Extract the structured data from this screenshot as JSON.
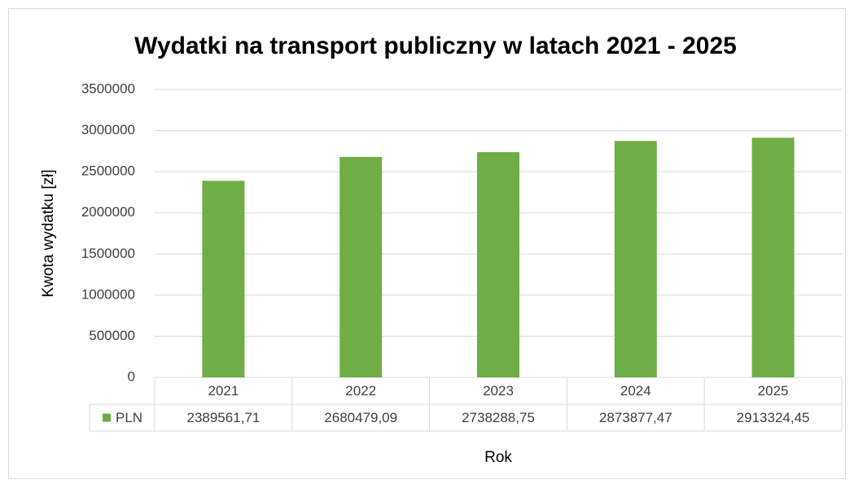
{
  "chart_data": {
    "type": "bar",
    "title": "Wydatki na transport publiczny w latach 2021 - 2025",
    "x_label": "Rok",
    "y_label": "Kwota wydatku [zł]",
    "categories": [
      "2021",
      "2022",
      "2023",
      "2024",
      "2025"
    ],
    "series": [
      {
        "name": "PLN",
        "color": "#70ad47",
        "values": [
          2389561.71,
          2680479.09,
          2738288.75,
          2873877.47,
          2913324.45
        ],
        "value_labels": [
          "2389561,71",
          "2680479,09",
          "2738288,75",
          "2873877,47",
          "2913324,45"
        ]
      }
    ],
    "ylim": [
      0,
      3500000
    ],
    "yticks": [
      0,
      500000,
      1000000,
      1500000,
      2000000,
      2500000,
      3000000,
      3500000
    ],
    "grid": true
  }
}
